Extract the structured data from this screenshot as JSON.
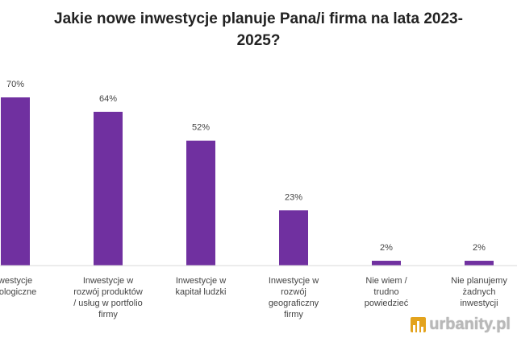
{
  "chart_data": {
    "type": "bar",
    "title_lines": [
      "Jakie nowe inwestycje planuje Pana/i firma na lata 2023-",
      "2025?"
    ],
    "categories": [
      [
        "westycje",
        "nologiczne"
      ],
      [
        "Inwestycje w",
        "rozwój produktów",
        "/ usług w portfolio",
        "firmy"
      ],
      [
        "Inwestycje w",
        "kapitał ludzki"
      ],
      [
        "Inwestycje w",
        "rozwój",
        "geograficzny",
        "firmy"
      ],
      [
        "Nie  wiem /",
        "trudno",
        "powiedzieć"
      ],
      [
        "Nie planujemy",
        "żadnych",
        "inwestycji"
      ]
    ],
    "values": [
      70,
      64,
      52,
      23,
      2,
      2
    ],
    "value_labels": [
      "70%",
      "64%",
      "52%",
      "23%",
      "2%",
      "2%"
    ],
    "unit": "%",
    "ylim": [
      0,
      70
    ],
    "grid": false,
    "legend": "none",
    "bar_color": "#7030a0",
    "axis_color": "#d9d9d9"
  },
  "watermark": {
    "text": "urbanity.pl",
    "icon": "city-buildings-icon",
    "icon_color": "#e3a31d"
  }
}
